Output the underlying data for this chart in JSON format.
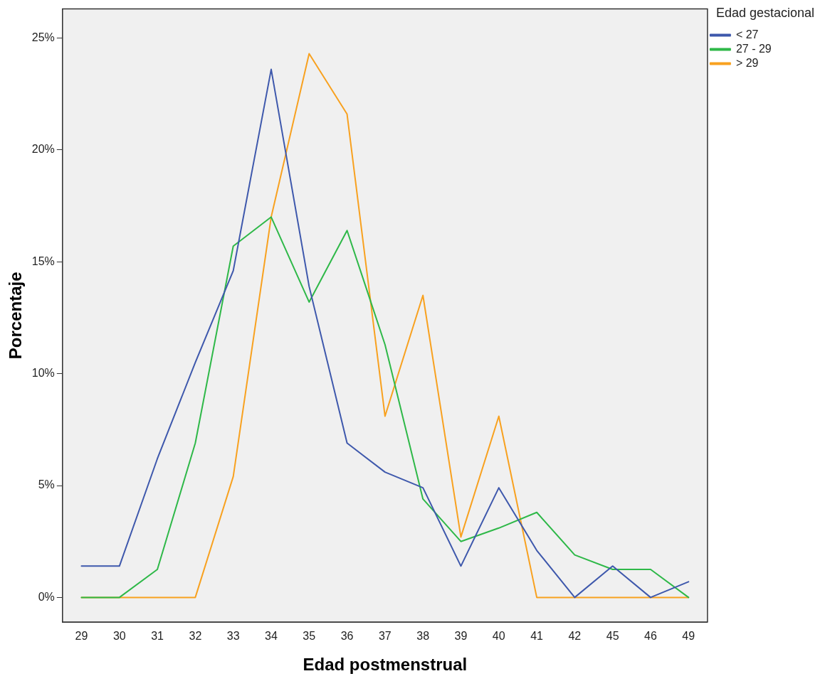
{
  "chart_data": {
    "type": "line",
    "xlabel": "Edad postmenstrual",
    "ylabel": "Porcentaje",
    "legend_title": "Edad gestacional",
    "legend": "top right",
    "grid": false,
    "marker": "none",
    "line_style": "solid",
    "categories": [
      "29",
      "30",
      "31",
      "32",
      "33",
      "34",
      "35",
      "36",
      "37",
      "38",
      "39",
      "40",
      "41",
      "42",
      "45",
      "46",
      "49"
    ],
    "ylim": [
      -1.1,
      26.3
    ],
    "yticks": [
      {
        "value": 0,
        "label": "0%"
      },
      {
        "value": 5,
        "label": "5%"
      },
      {
        "value": 10,
        "label": "10%"
      },
      {
        "value": 15,
        "label": "15%"
      },
      {
        "value": 20,
        "label": "20%"
      },
      {
        "value": 25,
        "label": "25%"
      }
    ],
    "series": [
      {
        "name": "< 27",
        "color": "#3e58ac",
        "values": [
          1.4,
          1.4,
          6.2,
          10.5,
          14.6,
          23.6,
          13.9,
          6.9,
          5.6,
          4.9,
          1.4,
          4.9,
          2.1,
          0,
          1.4,
          0,
          0.7
        ]
      },
      {
        "name": "27 - 29",
        "color": "#2eb848",
        "values": [
          0,
          0,
          1.25,
          6.9,
          15.7,
          17.0,
          13.2,
          16.4,
          11.3,
          4.4,
          2.5,
          3.1,
          3.8,
          1.9,
          1.25,
          1.25,
          0
        ]
      },
      {
        "name": "> 29",
        "color": "#f8a11f",
        "values": [
          0,
          0,
          0,
          0,
          5.4,
          17.0,
          24.3,
          21.6,
          8.1,
          13.5,
          2.7,
          8.1,
          0,
          0,
          0,
          0,
          0
        ]
      }
    ]
  }
}
